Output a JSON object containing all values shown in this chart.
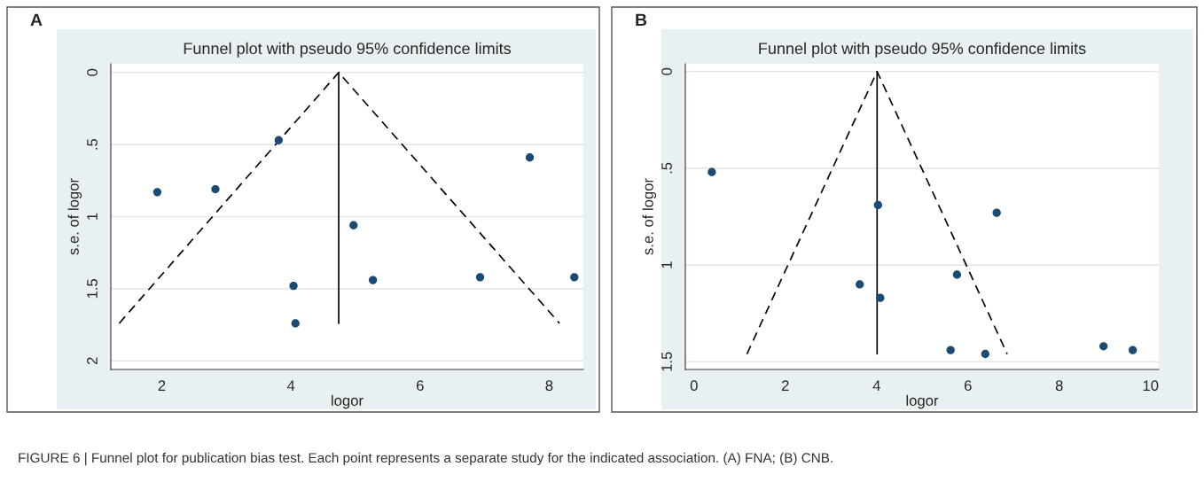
{
  "chart_data": [
    {
      "type": "scatter",
      "title": "Funnel plot with pseudo 95% confidence limits",
      "xlabel": "logor",
      "ylabel": "s.e. of logor",
      "annotations": [
        "A",
        "FIGURE 6 | Funnel plot for publication bias test. Each point represents a separate study for the indicated association. (A) FNA; (B) CNB."
      ],
      "series": [
        {
          "color": "#1b4a72",
          "marker": "circle",
          "x": [
            1.93,
            2.83,
            3.81,
            4.04,
            4.07,
            4.97,
            5.27,
            6.93,
            7.7,
            8.39
          ],
          "values": [
            0.83,
            0.81,
            0.47,
            1.48,
            1.74,
            1.06,
            1.44,
            1.42,
            0.59,
            1.42
          ]
        },
        {
          "type": "line",
          "color": "#000000",
          "line_style": "dashed",
          "x": [
            1.34,
            4.74,
            8.16
          ],
          "values": [
            1.74,
            0,
            1.74
          ]
        },
        {
          "type": "line",
          "color": "#000000",
          "line_style": "solid",
          "x": [
            4.74,
            4.74
          ],
          "values": [
            0,
            1.74
          ]
        }
      ],
      "xlim": [
        1.21,
        8.53
      ],
      "xticks": [
        2,
        4,
        6,
        8
      ],
      "ylim": [
        2.06,
        -0.06
      ],
      "yticks": [
        {
          "value": 0,
          "label": "0"
        },
        {
          "value": 0.5,
          "label": ".5"
        },
        {
          "value": 1,
          "label": "1"
        },
        {
          "value": 1.5,
          "label": "1.5"
        },
        {
          "value": 2,
          "label": "2"
        }
      ],
      "grid": "y",
      "legend": false
    },
    {
      "type": "scatter",
      "title": "Funnel plot with pseudo 95% confidence limits",
      "xlabel": "logor",
      "ylabel": "s.e. of logor",
      "annotations": [
        "B"
      ],
      "series": [
        {
          "color": "#1b4a72",
          "marker": "circle",
          "x": [
            0.39,
            4.03,
            6.63,
            3.63,
            4.08,
            5.76,
            5.62,
            6.38,
            8.97,
            9.61
          ],
          "values": [
            0.52,
            0.69,
            0.73,
            1.1,
            1.17,
            1.05,
            1.44,
            1.46,
            1.42,
            1.44
          ]
        },
        {
          "type": "line",
          "color": "#000000",
          "line_style": "dashed",
          "x": [
            1.16,
            4.01,
            6.86
          ],
          "values": [
            1.46,
            0,
            1.46
          ]
        },
        {
          "type": "line",
          "color": "#000000",
          "line_style": "solid",
          "x": [
            4.01,
            4.01
          ],
          "values": [
            0,
            1.46
          ]
        }
      ],
      "xlim": [
        -0.19,
        10.18
      ],
      "xticks": [
        0,
        2,
        4,
        6,
        8,
        10
      ],
      "ylim": [
        1.54,
        -0.04
      ],
      "yticks": [
        {
          "value": 0,
          "label": "0"
        },
        {
          "value": 0.5,
          "label": ".5"
        },
        {
          "value": 1,
          "label": "1"
        },
        {
          "value": 1.5,
          "label": "1.5"
        }
      ],
      "grid": "y",
      "legend": false
    }
  ]
}
